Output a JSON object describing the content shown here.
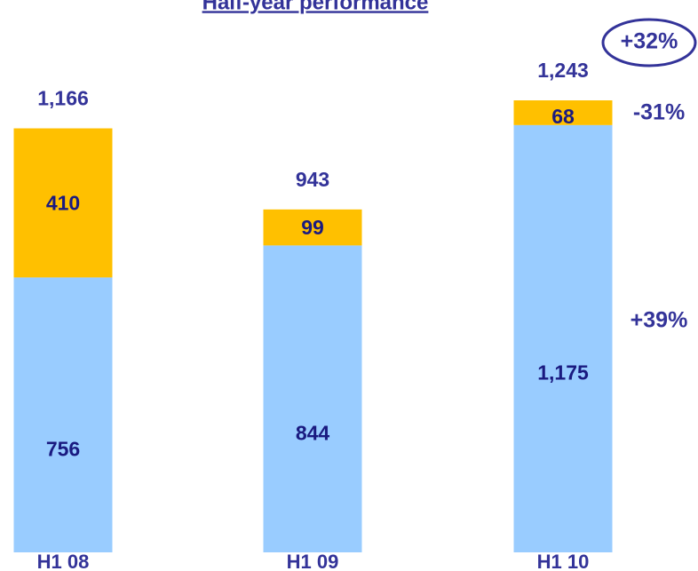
{
  "chart_data": {
    "type": "stacked_bar",
    "title": "Half-year performance",
    "categories": [
      "H1 08",
      "H1 09",
      "H1 10"
    ],
    "series": [
      {
        "color": "#99ccff",
        "values": [
          756,
          844,
          1175
        ],
        "value_labels": [
          "756",
          "844",
          "1,175"
        ]
      },
      {
        "color": "#ffc000",
        "values": [
          410,
          99,
          68
        ],
        "value_labels": [
          "410",
          "99",
          "68"
        ]
      }
    ],
    "totals": [
      1166,
      943,
      1243
    ],
    "total_labels": [
      "1,166",
      "943",
      "1,243"
    ],
    "annotations": [
      "+32%",
      "-31%",
      "+39%"
    ]
  }
}
